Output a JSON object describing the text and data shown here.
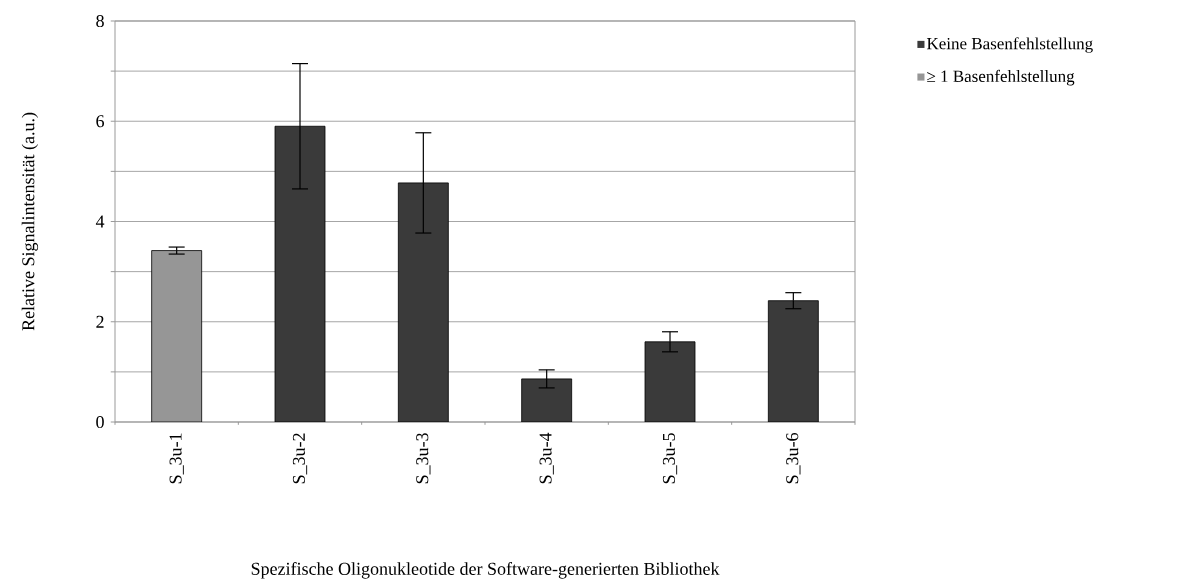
{
  "chart_data": {
    "type": "bar",
    "xlabel": "Spezifische Oligonukleotide der Software-generierten Bibliothek",
    "ylabel": "Relative Signalintensität (a.u.)",
    "categories": [
      "S_3u-1",
      "S_3u-2",
      "S_3u-3",
      "S_3u-4",
      "S_3u-5",
      "S_3u-6"
    ],
    "series": [
      {
        "name": "Keine Basenfehlstellung",
        "color": "#3a3a3a",
        "values": [
          null,
          5.9,
          4.77,
          0.86,
          1.6,
          2.42
        ],
        "errors": [
          null,
          1.25,
          1.0,
          0.18,
          0.2,
          0.16
        ]
      },
      {
        "name": "≥ 1 Basenfehlstellung",
        "color": "#969696",
        "values": [
          3.42,
          null,
          null,
          null,
          null,
          null
        ],
        "errors": [
          0.07,
          null,
          null,
          null,
          null,
          null
        ]
      }
    ],
    "ylim": [
      0,
      8
    ],
    "yticks": [
      0,
      {
        "value": 1,
        "label": null
      },
      2,
      {
        "value": 3,
        "label": null
      },
      4,
      {
        "value": 5,
        "label": null
      },
      6,
      {
        "value": 7,
        "label": null
      },
      8
    ],
    "grid": "y",
    "legend": "right"
  }
}
